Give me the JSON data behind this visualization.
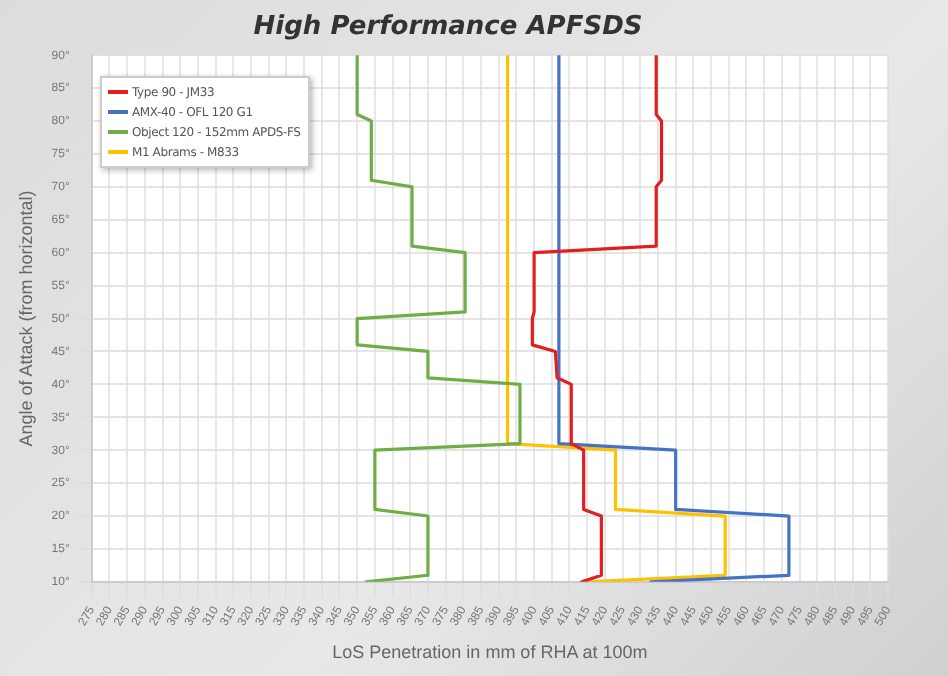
{
  "chart_data": {
    "type": "line",
    "title": "High Performance APFSDS",
    "xlabel": "LoS Penetration in mm of RHA at 100m",
    "ylabel": "Angle of Attack (from horizontal)",
    "xlim": [
      275,
      500
    ],
    "xticks": [
      275,
      280,
      285,
      290,
      295,
      300,
      305,
      310,
      315,
      320,
      325,
      330,
      335,
      340,
      345,
      350,
      355,
      360,
      365,
      370,
      375,
      380,
      385,
      390,
      395,
      400,
      405,
      410,
      415,
      420,
      425,
      430,
      435,
      440,
      445,
      450,
      455,
      460,
      465,
      470,
      475,
      480,
      485,
      490,
      495,
      500
    ],
    "ylim": [
      10,
      90
    ],
    "yticks": [
      {
        "value": 10,
        "label": "10°"
      },
      {
        "value": 15,
        "label": "15°"
      },
      {
        "value": 20,
        "label": "20°"
      },
      {
        "value": 25,
        "label": "25°"
      },
      {
        "value": 30,
        "label": "30°"
      },
      {
        "value": 35,
        "label": "35°"
      },
      {
        "value": 40,
        "label": "40°"
      },
      {
        "value": 45,
        "label": "45°"
      },
      {
        "value": 50,
        "label": "50°"
      },
      {
        "value": 55,
        "label": "55°"
      },
      {
        "value": 60,
        "label": "60°"
      },
      {
        "value": 65,
        "label": "65°"
      },
      {
        "value": 70,
        "label": "70°"
      },
      {
        "value": 75,
        "label": "75°"
      },
      {
        "value": 80,
        "label": "80°"
      },
      {
        "value": 85,
        "label": "85°"
      },
      {
        "value": 90,
        "label": "90°"
      }
    ],
    "grid": true,
    "legend": "top left",
    "marker": "none",
    "series": [
      {
        "name": "Type 90 - JM33",
        "color": "#e02020",
        "x": [
          434.5,
          434.5,
          436,
          436,
          434.5,
          434.5,
          400,
          400,
          399.5,
          399.5,
          406,
          406.5,
          410.5,
          410.5,
          414,
          414,
          419,
          419,
          413.5
        ],
        "values": [
          90,
          81,
          80,
          71,
          70,
          61,
          60,
          51,
          50,
          46,
          45,
          41,
          40,
          31,
          30,
          21,
          20,
          11,
          10
        ]
      },
      {
        "name": "AMX-40 - OFL 120 G1",
        "color": "#4472c4",
        "x": [
          407,
          407,
          440,
          440,
          472,
          472,
          433
        ],
        "values": [
          90,
          31,
          30,
          21,
          20,
          11,
          10
        ]
      },
      {
        "name": "Object 120 - 152mm APDS-FS",
        "color": "#70ad47",
        "x": [
          350,
          350,
          354,
          354,
          365.5,
          365.5,
          380.5,
          380.5,
          350,
          350,
          370,
          370,
          396,
          396,
          355,
          355,
          370,
          370,
          352.5
        ],
        "values": [
          90,
          81,
          80,
          71,
          70,
          61,
          60,
          51,
          50,
          46,
          45,
          41,
          40,
          31,
          30,
          21,
          20,
          11,
          10
        ]
      },
      {
        "name": "M1 Abrams - M833",
        "color": "#ffc000",
        "x": [
          392.5,
          392.5,
          423,
          423,
          454,
          454,
          415
        ],
        "values": [
          90,
          31,
          30,
          21,
          20,
          11,
          10
        ]
      }
    ]
  }
}
